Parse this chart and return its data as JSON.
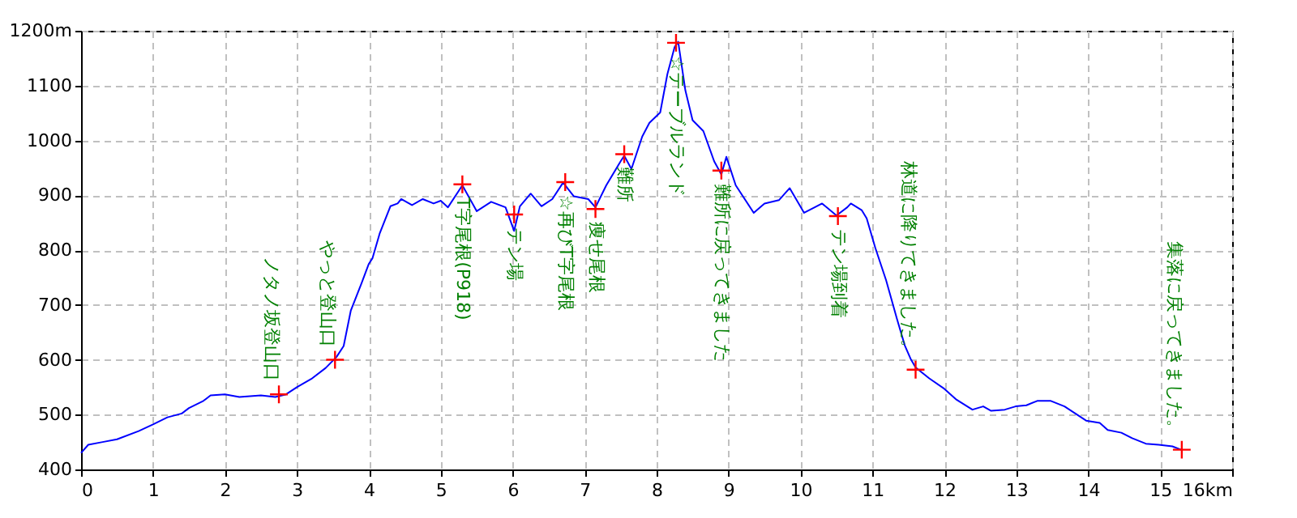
{
  "chart_data": {
    "type": "line",
    "xlim": [
      0,
      16
    ],
    "xticks": [
      0,
      1,
      2,
      3,
      4,
      5,
      6,
      7,
      8,
      9,
      10,
      11,
      12,
      13,
      14,
      15,
      {
        "value": 16,
        "label": "16km"
      }
    ],
    "ylim": [
      400,
      1200
    ],
    "yticks": [
      400,
      500,
      600,
      700,
      800,
      900,
      1000,
      1100,
      {
        "value": 1200,
        "label": "1200m"
      }
    ],
    "grid": true,
    "series": [
      {
        "type": "line",
        "color": "#0000ff",
        "marker": "none",
        "x": [
          0,
          0.1,
          0.3,
          0.5,
          0.8,
          1.0,
          1.2,
          1.4,
          1.5,
          1.7,
          1.8,
          2.0,
          2.2,
          2.5,
          2.7,
          2.85,
          3.0,
          3.2,
          3.4,
          3.55,
          3.65,
          3.75,
          3.9,
          4.0,
          4.05,
          4.15,
          4.3,
          4.4,
          4.45,
          4.6,
          4.75,
          4.9,
          5.0,
          5.1,
          5.3,
          5.5,
          5.7,
          5.9,
          6.02,
          6.1,
          6.25,
          6.4,
          6.55,
          6.7,
          6.85,
          7.05,
          7.15,
          7.3,
          7.5,
          7.55,
          7.65,
          7.8,
          7.9,
          8.05,
          8.15,
          8.25,
          8.3,
          8.4,
          8.5,
          8.65,
          8.8,
          8.9,
          8.97,
          9.1,
          9.35,
          9.5,
          9.7,
          9.85,
          10.05,
          10.3,
          10.5,
          10.65,
          10.7,
          10.85,
          10.92,
          11.04,
          11.19,
          11.34,
          11.45,
          11.53,
          11.6,
          11.79,
          12.0,
          12.17,
          12.39,
          12.54,
          12.65,
          12.84,
          12.99,
          13.14,
          13.29,
          13.48,
          13.67,
          13.82,
          13.97,
          14.16,
          14.27,
          14.46,
          14.61,
          14.8,
          14.98,
          15.17,
          15.29
        ],
        "values": [
          430,
          445,
          450,
          455,
          470,
          482,
          495,
          502,
          512,
          525,
          535,
          537,
          532,
          535,
          532,
          537,
          550,
          565,
          585,
          605,
          625,
          690,
          740,
          775,
          785,
          830,
          880,
          885,
          893,
          882,
          893,
          885,
          890,
          878,
          918,
          871,
          888,
          878,
          835,
          880,
          903,
          880,
          893,
          923,
          898,
          893,
          878,
          918,
          962,
          972,
          948,
          1007,
          1032,
          1051,
          1121,
          1170,
          1180,
          1091,
          1037,
          1017,
          962,
          938,
          970,
          918,
          868,
          885,
          891,
          913,
          868,
          885,
          863,
          878,
          885,
          873,
          858,
          804,
          745,
          675,
          626,
          602,
          586,
          566,
          547,
          527,
          509,
          515,
          507,
          509,
          515,
          517,
          525,
          525,
          515,
          502,
          489,
          485,
          472,
          467,
          457,
          447,
          445,
          442,
          436
        ]
      },
      {
        "type": "scatter",
        "color": "#ff0000",
        "marker": "cross",
        "x": [
          2.75,
          3.53,
          5.3,
          6.02,
          6.73,
          7.15,
          7.55,
          8.27,
          8.9,
          10.52,
          11.6,
          15.3
        ],
        "values": [
          537,
          600,
          920,
          865,
          924,
          875,
          975,
          1178,
          945,
          862,
          582,
          436
        ]
      }
    ],
    "annotations": [
      {
        "text": "ノタノ坂登山口",
        "x": 2.75,
        "y": 537
      },
      {
        "text": "やっと登山口",
        "x": 3.53,
        "y": 600
      },
      {
        "text": "T字尾根(P918)",
        "x": 5.3,
        "y": 920
      },
      {
        "text": "テン場",
        "x": 6.02,
        "y": 865
      },
      {
        "text": "☆再びT字尾根",
        "x": 6.73,
        "y": 924
      },
      {
        "text": "痩せ尾根",
        "x": 7.15,
        "y": 875
      },
      {
        "text": "難所",
        "x": 7.55,
        "y": 975
      },
      {
        "text": "☆テーブルランド",
        "x": 8.27,
        "y": 1178
      },
      {
        "text": "難所に戻ってきました",
        "x": 8.9,
        "y": 945
      },
      {
        "text": "テン場到着",
        "x": 10.52,
        "y": 862
      },
      {
        "text": "林道に降りてきました。",
        "x": 11.6,
        "y": 582
      },
      {
        "text": "集落に戻ってきました。",
        "x": 15.3,
        "y": 436
      }
    ]
  }
}
